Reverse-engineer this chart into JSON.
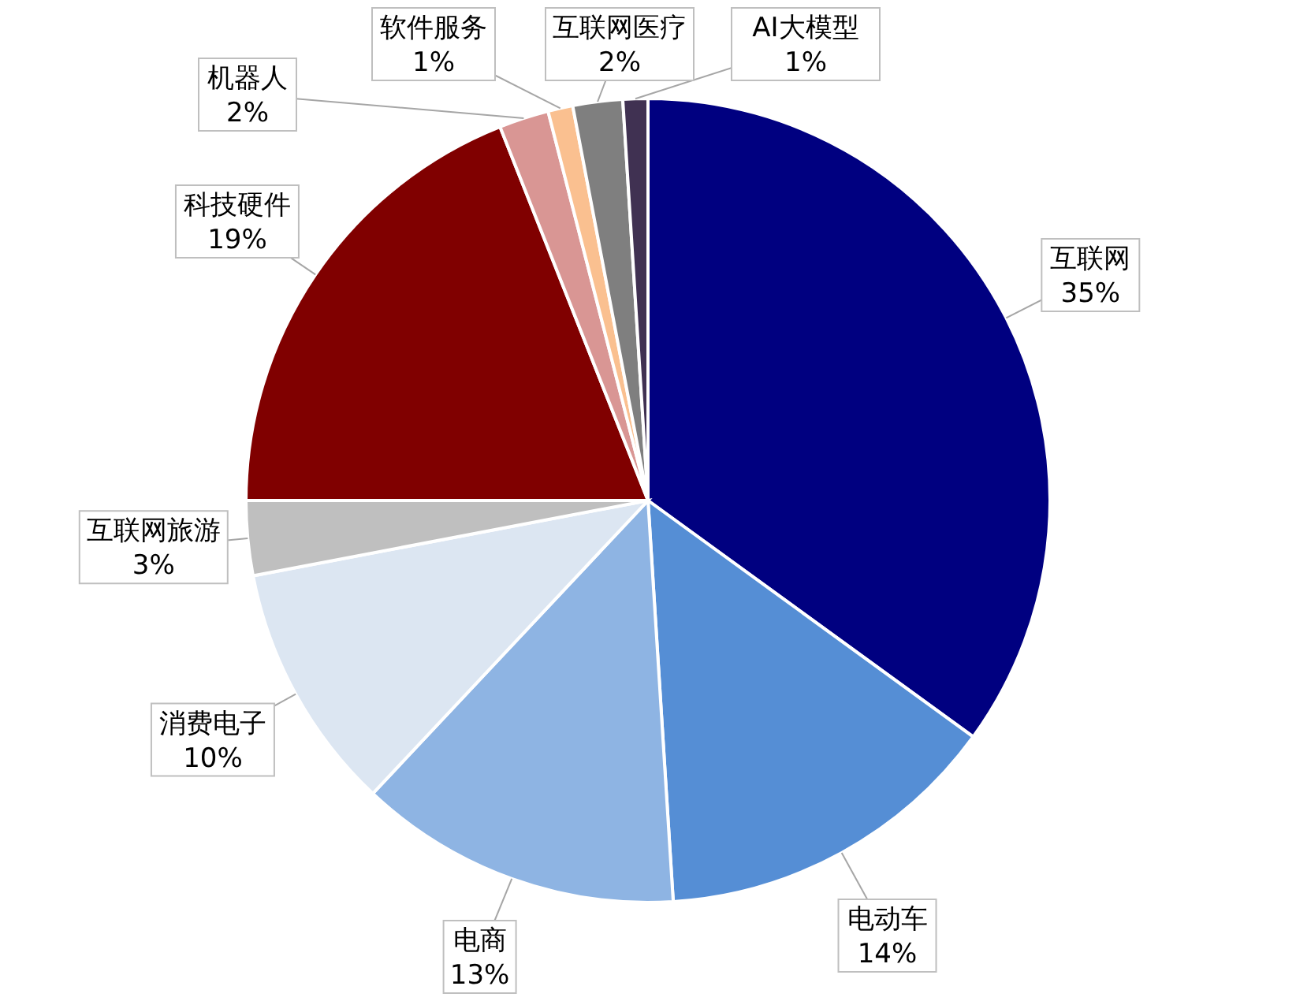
{
  "chart_data": {
    "type": "pie",
    "categories": [
      "互联网",
      "电动车",
      "电商",
      "消费电子",
      "互联网旅游",
      "科技硬件",
      "机器人",
      "软件服务",
      "互联网医疗",
      "AI大模型"
    ],
    "values": [
      35,
      14,
      13,
      10,
      3,
      19,
      2,
      1,
      2,
      1
    ],
    "colors": [
      "#000080",
      "#558ed5",
      "#8eb4e3",
      "#dce6f2",
      "#bfbfbf",
      "#800000",
      "#d99694",
      "#fac090",
      "#7f7f7f",
      "#403152"
    ],
    "value_labels": [
      "35%",
      "14%",
      "13%",
      "10%",
      "3%",
      "19%",
      "2%",
      "1%",
      "2%",
      "1%"
    ]
  }
}
